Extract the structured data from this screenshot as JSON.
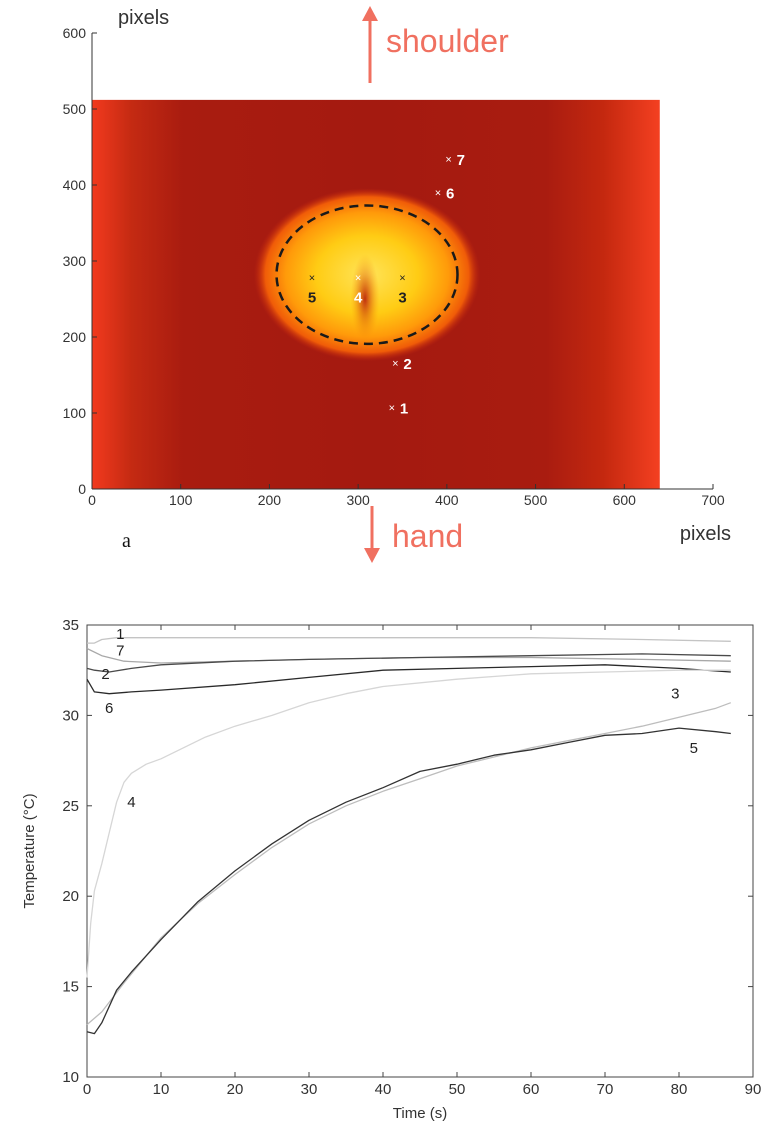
{
  "panel_label": "a",
  "colors": {
    "annotation": "#f07060",
    "heat_dark": "#a41a10",
    "heat_mid": "#c42a12",
    "heat_edge": "#f23a1e",
    "hot": "#ffd020"
  },
  "chart_data": [
    {
      "type": "heatmap",
      "title": "",
      "xlabel": "pixels",
      "ylabel": "pixels",
      "xlim": [
        0,
        700
      ],
      "ylim": [
        0,
        600
      ],
      "xticks": [
        0,
        100,
        200,
        300,
        400,
        500,
        600,
        700
      ],
      "yticks": [
        0,
        100,
        200,
        300,
        400,
        500,
        600
      ],
      "image_extent": {
        "x": [
          0,
          640
        ],
        "y": [
          0,
          512
        ]
      },
      "annotations": {
        "top": "shoulder",
        "bottom": "hand"
      },
      "hot_spot": {
        "cx": 310,
        "cy": 282,
        "rx": 102,
        "ry": 91
      },
      "points": [
        {
          "label": "1",
          "x": 338,
          "y": 107
        },
        {
          "label": "2",
          "x": 342,
          "y": 166
        },
        {
          "label": "3",
          "x": 350,
          "y": 278
        },
        {
          "label": "4",
          "x": 300,
          "y": 278
        },
        {
          "label": "5",
          "x": 248,
          "y": 278
        },
        {
          "label": "6",
          "x": 390,
          "y": 390
        },
        {
          "label": "7",
          "x": 402,
          "y": 434
        }
      ]
    },
    {
      "type": "line",
      "title": "",
      "xlabel": "Time (s)",
      "ylabel": "Temperature (°C)",
      "xlim": [
        0,
        90
      ],
      "ylim": [
        10,
        35
      ],
      "xticks": [
        0,
        10,
        20,
        30,
        40,
        50,
        60,
        70,
        80,
        90
      ],
      "yticks": [
        10,
        15,
        20,
        25,
        30,
        35
      ],
      "series": [
        {
          "name": "1",
          "color": "#c4c4c4",
          "x": [
            0,
            1,
            2,
            4,
            8,
            15,
            25,
            40,
            60,
            75,
            87
          ],
          "y": [
            34.0,
            34.0,
            34.2,
            34.3,
            34.3,
            34.3,
            34.3,
            34.3,
            34.3,
            34.2,
            34.1
          ]
        },
        {
          "name": "7",
          "color": "#a8a8a8",
          "x": [
            0,
            2,
            5,
            10,
            20,
            30,
            45,
            60,
            75,
            87
          ],
          "y": [
            33.7,
            33.3,
            33.0,
            32.9,
            33.0,
            33.1,
            33.2,
            33.2,
            33.1,
            33.0
          ]
        },
        {
          "name": "2",
          "color": "#4a4a4a",
          "x": [
            0,
            1,
            3,
            6,
            10,
            20,
            30,
            45,
            60,
            75,
            87
          ],
          "y": [
            32.6,
            32.5,
            32.4,
            32.6,
            32.8,
            33.0,
            33.1,
            33.2,
            33.3,
            33.4,
            33.3
          ]
        },
        {
          "name": "6",
          "color": "#2a2a2a",
          "x": [
            0,
            1,
            3,
            6,
            10,
            20,
            30,
            40,
            50,
            60,
            70,
            80,
            87
          ],
          "y": [
            32.0,
            31.3,
            31.2,
            31.3,
            31.4,
            31.7,
            32.1,
            32.5,
            32.6,
            32.7,
            32.8,
            32.6,
            32.4
          ]
        },
        {
          "name": "4",
          "color": "#d6d6d6",
          "x": [
            0,
            0.5,
            1,
            2,
            3,
            4,
            5,
            6,
            8,
            10,
            13,
            16,
            20,
            25,
            30,
            35,
            40,
            50,
            60,
            70,
            80,
            87
          ],
          "y": [
            15.5,
            18.5,
            20.3,
            21.8,
            23.5,
            25.2,
            26.3,
            26.8,
            27.3,
            27.6,
            28.2,
            28.8,
            29.4,
            30.0,
            30.7,
            31.2,
            31.6,
            32.0,
            32.3,
            32.4,
            32.5,
            32.5
          ]
        },
        {
          "name": "3",
          "color": "#bdbdbd",
          "x": [
            0,
            2,
            5,
            10,
            15,
            20,
            25,
            30,
            35,
            40,
            45,
            50,
            55,
            60,
            65,
            70,
            75,
            80,
            85,
            87
          ],
          "y": [
            12.9,
            13.6,
            15.2,
            17.7,
            19.6,
            21.2,
            22.7,
            24.0,
            25.0,
            25.8,
            26.5,
            27.2,
            27.7,
            28.2,
            28.6,
            29.0,
            29.4,
            29.9,
            30.4,
            30.7
          ]
        },
        {
          "name": "5",
          "color": "#333333",
          "x": [
            0,
            1,
            2,
            4,
            6,
            10,
            15,
            20,
            25,
            30,
            35,
            40,
            45,
            50,
            55,
            60,
            65,
            70,
            75,
            80,
            85,
            87
          ],
          "y": [
            12.5,
            12.4,
            13.0,
            14.8,
            15.8,
            17.6,
            19.7,
            21.4,
            22.9,
            24.2,
            25.2,
            26.0,
            26.9,
            27.3,
            27.8,
            28.1,
            28.5,
            28.9,
            29.0,
            29.3,
            29.1,
            29.0
          ]
        }
      ],
      "series_labels": [
        {
          "text": "1",
          "x": 4.5,
          "y": 34.5
        },
        {
          "text": "7",
          "x": 4.5,
          "y": 33.6
        },
        {
          "text": "2",
          "x": 2.5,
          "y": 32.3
        },
        {
          "text": "6",
          "x": 3.0,
          "y": 30.4
        },
        {
          "text": "4",
          "x": 6.0,
          "y": 25.2
        },
        {
          "text": "3",
          "x": 79.5,
          "y": 31.2
        },
        {
          "text": "5",
          "x": 82.0,
          "y": 28.2
        }
      ]
    }
  ]
}
